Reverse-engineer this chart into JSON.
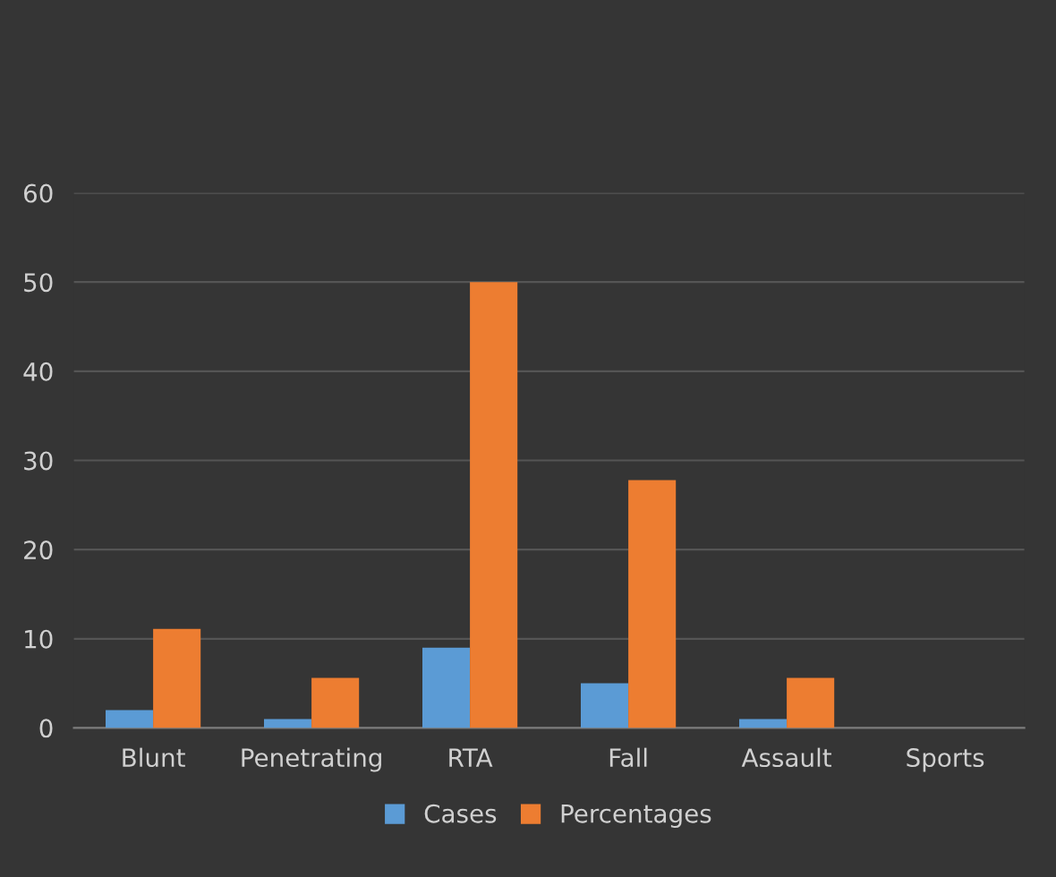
{
  "chart_data": {
    "type": "bar",
    "categories": [
      "Blunt",
      "Penetrating",
      "RTA",
      "Fall",
      "Assault",
      "Sports"
    ],
    "series": [
      {
        "name": "Cases",
        "color": "#5b9bd5",
        "values": [
          2,
          1,
          9,
          5,
          1,
          0
        ]
      },
      {
        "name": "Percentages",
        "color": "#ed7d31",
        "values": [
          11.1,
          5.6,
          50,
          27.8,
          5.6,
          0
        ]
      }
    ],
    "ylim": [
      0,
      60
    ],
    "yticks": [
      0,
      10,
      20,
      30,
      40,
      50,
      60
    ],
    "grid": "y",
    "legend": "bottom"
  }
}
